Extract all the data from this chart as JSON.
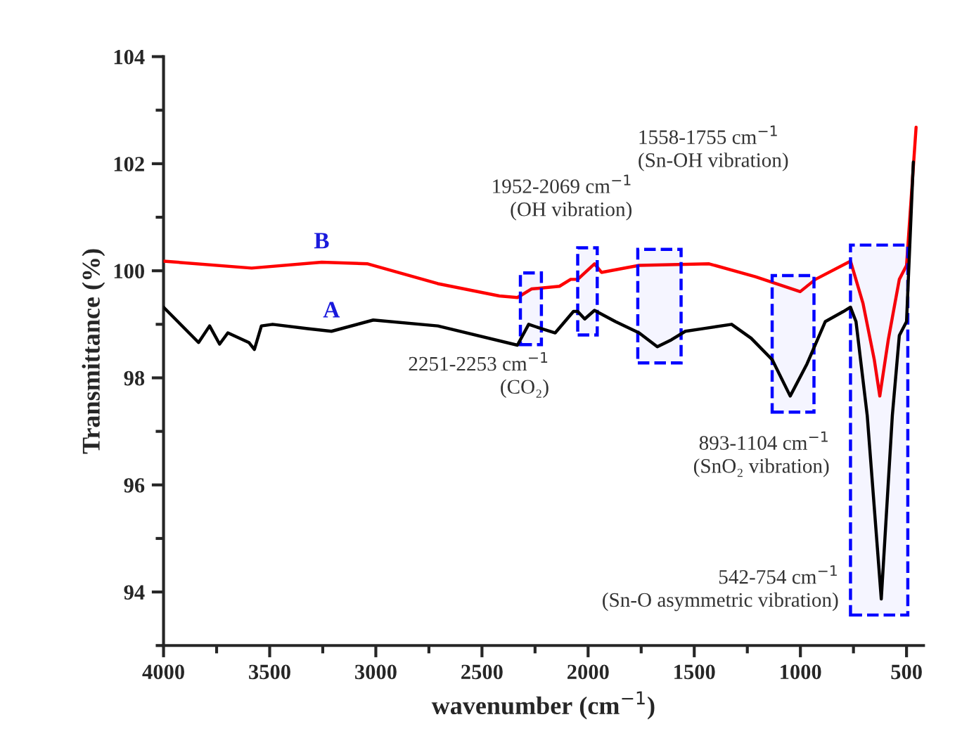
{
  "chart_data": {
    "type": "line",
    "xlabel": "wavenumber (cm$^{−1}$)",
    "ylabel": "Transmittance (%)",
    "xlim": [
      4000,
      420
    ],
    "xticks": [
      4000,
      3500,
      3000,
      2500,
      2000,
      1500,
      1000,
      500
    ],
    "ylim": [
      93,
      104
    ],
    "yticks": [
      94,
      96,
      98,
      100,
      102,
      104
    ],
    "grid": false,
    "legend": false,
    "line_style": "solid",
    "marker": "none",
    "series": [
      {
        "name": "A",
        "color": "#000000",
        "x": [
          4000,
          3835,
          3783,
          3736,
          3697,
          3598,
          3572,
          3539,
          3486,
          3321,
          3209,
          3012,
          2708,
          2333,
          2280,
          2221,
          2155,
          2069,
          2049,
          2016,
          1970,
          1871,
          1760,
          1674,
          1608,
          1542,
          1456,
          1324,
          1232,
          1133,
          1048,
          969,
          883,
          797,
          764,
          738,
          685,
          619,
          567,
          534,
          500,
          468
        ],
        "values": [
          99.32,
          98.66,
          98.97,
          98.63,
          98.84,
          98.66,
          98.53,
          98.97,
          99.0,
          98.92,
          98.87,
          99.08,
          98.97,
          98.61,
          99.0,
          98.92,
          98.84,
          99.24,
          99.24,
          99.1,
          99.26,
          99.05,
          98.84,
          98.58,
          98.71,
          98.87,
          98.92,
          99.0,
          98.74,
          98.34,
          97.66,
          98.26,
          99.05,
          99.24,
          99.32,
          99.05,
          97.29,
          93.87,
          97.29,
          98.79,
          99.05,
          102.03
        ]
      },
      {
        "name": "B",
        "color": "#ff0000",
        "x": [
          4000,
          3585,
          3255,
          3038,
          2708,
          2418,
          2333,
          2267,
          2135,
          2082,
          2049,
          1970,
          1937,
          1760,
          1430,
          1212,
          1001,
          929,
          764,
          705,
          652,
          626,
          586,
          534,
          500,
          455
        ],
        "values": [
          100.18,
          100.05,
          100.16,
          100.13,
          99.76,
          99.53,
          99.5,
          99.66,
          99.71,
          99.84,
          99.84,
          100.13,
          99.97,
          100.1,
          100.13,
          99.89,
          99.61,
          99.84,
          100.18,
          99.39,
          98.34,
          97.66,
          98.71,
          99.84,
          100.1,
          102.68
        ]
      }
    ],
    "bands": [
      {
        "axis": "x",
        "from": 2319,
        "to": 2220,
        "color": "#0000ff"
      },
      {
        "axis": "x",
        "from": 2049,
        "to": 1957,
        "color": "#0000ff"
      },
      {
        "axis": "x",
        "from": 1766,
        "to": 1562,
        "color": "#0000ff"
      },
      {
        "axis": "x",
        "from": 1133,
        "to": 936,
        "color": "#0000ff"
      },
      {
        "axis": "x",
        "from": 764,
        "to": 494,
        "color": "#0000ff"
      }
    ],
    "annotations": [
      "2251-2253 cm$^{−1}$\n(CO₂)",
      "1952-2069 cm$^{−1}$\n(OH vibration)",
      "1558-1755 cm$^{−1}$\n(Sn-OH vibration)",
      "893-1104 cm$^{−1}$\n(SnO₂ vibration)",
      "542-754 cm$^{−1}$\n(Sn-O asymmetric vibration)"
    ]
  }
}
